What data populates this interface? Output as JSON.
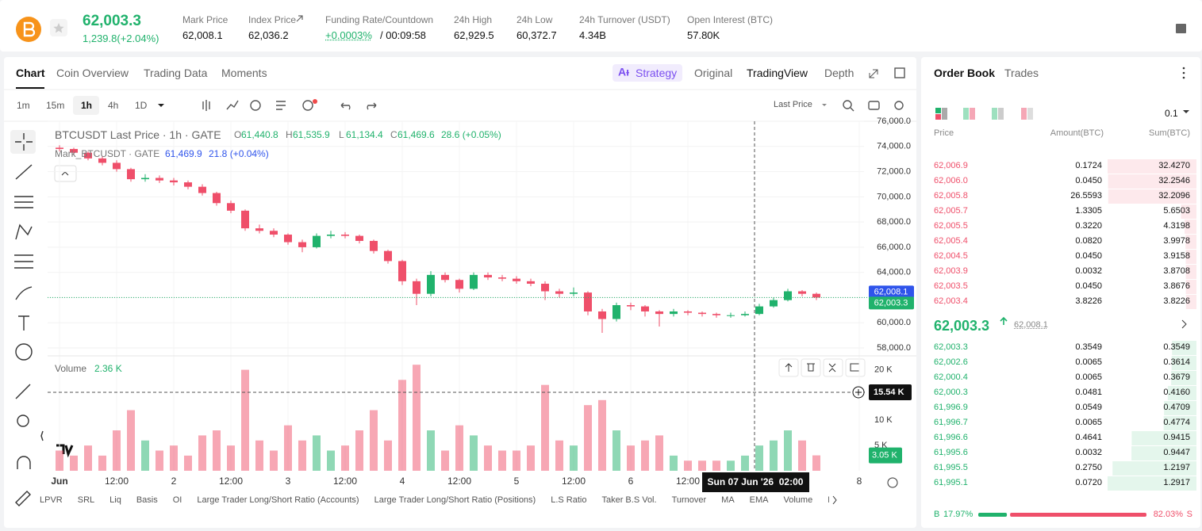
{
  "header": {
    "price": "62,003.3",
    "change": "1,239.8(+2.04%)",
    "stats": [
      {
        "label": "Mark Price",
        "value": "62,008.1"
      },
      {
        "label": "Index Price",
        "value": "62,036.2"
      },
      {
        "label": "Funding Rate/Countdown",
        "rate": "+0.0003%",
        "countdown": "/ 00:09:58"
      },
      {
        "label": "24h High",
        "value": "62,929.5"
      },
      {
        "label": "24h Low",
        "value": "60,372.7"
      },
      {
        "label": "24h Turnover (USDT)",
        "value": "4.34B"
      },
      {
        "label": "Open Interest (BTC)",
        "value": "57.80K"
      }
    ]
  },
  "tabs": [
    "Chart",
    "Coin Overview",
    "Trading Data",
    "Moments"
  ],
  "view_tabs": [
    "Strategy",
    "Original",
    "TradingView",
    "Depth"
  ],
  "intervals": [
    "1m",
    "15m",
    "1h",
    "4h",
    "1D"
  ],
  "price_type": "Last Price",
  "chart_data": {
    "type": "candlestick",
    "title": "BTCUSDT Last Price · 1h · GATE",
    "ohlc_legend": [
      {
        "key": "O",
        "value": "61,440.8"
      },
      {
        "key": "H",
        "value": "61,535.9"
      },
      {
        "key": "L",
        "value": "61,134.4"
      },
      {
        "key": "C",
        "value": "61,469.6"
      }
    ],
    "legend_change": "28.6 (+0.05%)",
    "mark_legend": {
      "name": "Mark_BTCUSDT · GATE",
      "value": "61,469.9",
      "change": "21.8 (+0.04%)"
    },
    "x": [
      0,
      3,
      6,
      9,
      12,
      15,
      18,
      21,
      24,
      27,
      30,
      33,
      36,
      39,
      42,
      45,
      48,
      51,
      54,
      57,
      60,
      63,
      66,
      69,
      72,
      75,
      78,
      81,
      84,
      87,
      90,
      93,
      96,
      99,
      102,
      105,
      108,
      111,
      114,
      117,
      120,
      123,
      126,
      129,
      132,
      135,
      138,
      141,
      144,
      147,
      150,
      153,
      156,
      159
    ],
    "ohlc": [
      [
        73900,
        74100,
        73600,
        73800
      ],
      [
        73800,
        73900,
        73300,
        73500
      ],
      [
        73500,
        73600,
        72900,
        73050
      ],
      [
        73050,
        73200,
        72500,
        72700
      ],
      [
        72700,
        72900,
        72000,
        72200
      ],
      [
        72200,
        72300,
        71200,
        71400
      ],
      [
        71400,
        71800,
        71200,
        71500
      ],
      [
        71500,
        71700,
        71100,
        71300
      ],
      [
        71300,
        71500,
        70900,
        71150
      ],
      [
        71150,
        71300,
        70600,
        70800
      ],
      [
        70800,
        71000,
        70100,
        70300
      ],
      [
        70300,
        70400,
        69300,
        69500
      ],
      [
        69500,
        69700,
        68700,
        68900
      ],
      [
        68900,
        69000,
        67300,
        67500
      ],
      [
        67500,
        67800,
        67100,
        67300
      ],
      [
        67300,
        67500,
        66800,
        67000
      ],
      [
        67000,
        67100,
        66200,
        66400
      ],
      [
        66400,
        66600,
        65600,
        66000
      ],
      [
        66000,
        67100,
        65900,
        66900
      ],
      [
        66900,
        67300,
        66700,
        67000
      ],
      [
        67000,
        67200,
        66700,
        66900
      ],
      [
        66900,
        67000,
        66300,
        66500
      ],
      [
        66500,
        66600,
        65500,
        65700
      ],
      [
        65700,
        65800,
        64700,
        64900
      ],
      [
        64900,
        65000,
        63000,
        63300
      ],
      [
        63300,
        63500,
        61400,
        62300
      ],
      [
        62300,
        64100,
        62100,
        63800
      ],
      [
        63800,
        64000,
        63200,
        63400
      ],
      [
        63400,
        63500,
        62400,
        62700
      ],
      [
        62700,
        64000,
        62600,
        63800
      ],
      [
        63800,
        64000,
        63400,
        63600
      ],
      [
        63600,
        63800,
        63300,
        63500
      ],
      [
        63500,
        63700,
        63100,
        63300
      ],
      [
        63300,
        63500,
        62900,
        63100
      ],
      [
        63100,
        63300,
        61800,
        62500
      ],
      [
        62500,
        62700,
        62000,
        62300
      ],
      [
        62300,
        62800,
        62100,
        62400
      ],
      [
        62400,
        62500,
        60600,
        60900
      ],
      [
        60900,
        61100,
        59200,
        60300
      ],
      [
        60300,
        61600,
        60100,
        61400
      ],
      [
        61400,
        61600,
        61000,
        61300
      ],
      [
        61300,
        61400,
        60500,
        60900
      ],
      [
        60900,
        61000,
        59700,
        60700
      ],
      [
        60700,
        61100,
        60500,
        60900
      ],
      [
        60900,
        61000,
        60600,
        60800
      ],
      [
        60800,
        60900,
        60500,
        60700
      ],
      [
        60700,
        60800,
        60400,
        60600
      ],
      [
        60600,
        60800,
        60400,
        60600
      ],
      [
        60600,
        60900,
        60500,
        60700
      ],
      [
        60700,
        61500,
        60600,
        61300
      ],
      [
        61300,
        62000,
        61200,
        61800
      ],
      [
        61800,
        62700,
        61700,
        62500
      ],
      [
        62500,
        62600,
        62100,
        62300
      ],
      [
        62300,
        62400,
        61800,
        62003.3
      ]
    ],
    "up_color": "#20b26c",
    "down_color": "#ef4f6a",
    "xlim": [
      -2.5,
      169
    ],
    "xticks": [
      {
        "value": 0,
        "label": "Jun"
      },
      {
        "value": 12,
        "label": "12:00"
      },
      {
        "value": 24,
        "label": "2"
      },
      {
        "value": 36,
        "label": "12:00"
      },
      {
        "value": 48,
        "label": "3"
      },
      {
        "value": 60,
        "label": "12:00"
      },
      {
        "value": 72,
        "label": "4"
      },
      {
        "value": 84,
        "label": "12:00"
      },
      {
        "value": 96,
        "label": "5"
      },
      {
        "value": 108,
        "label": "12:00"
      },
      {
        "value": 120,
        "label": "6"
      },
      {
        "value": 132,
        "label": "12:00"
      },
      {
        "value": 168,
        "label": "8"
      }
    ],
    "ylim": [
      57500,
      76000
    ],
    "yticks": [
      {
        "value": 58000,
        "label": "58,000.0"
      },
      {
        "value": 60000,
        "label": "60,000.0"
      },
      {
        "value": 62000,
        "label": "62,000.0"
      },
      {
        "value": 64000,
        "label": "64,000.0"
      },
      {
        "value": 66000,
        "label": "66,000.0"
      },
      {
        "value": 68000,
        "label": "68,000.0"
      },
      {
        "value": 70000,
        "label": "70,000.0"
      },
      {
        "value": 72000,
        "label": "72,000.0"
      },
      {
        "value": 74000,
        "label": "74,000.0"
      },
      {
        "value": 76000,
        "label": "76,000.0"
      }
    ],
    "grid": true,
    "price_tags": [
      {
        "value": 62008.1,
        "label": "62,008.1",
        "color": "#2f54eb"
      },
      {
        "value": 62003.3,
        "label": "62,003.3",
        "color": "#20b26c"
      }
    ],
    "volume": {
      "title": "Volume",
      "current": "2.36 K",
      "values": [
        4,
        3,
        5,
        3,
        8,
        12,
        6,
        4,
        5,
        3,
        7,
        8,
        5,
        20,
        6,
        4,
        9,
        6,
        7,
        4,
        5,
        8,
        12,
        6,
        18,
        21,
        8,
        4,
        9,
        7,
        5,
        4,
        4,
        5,
        17,
        6,
        5,
        13,
        14,
        8,
        5,
        6,
        7,
        3,
        2,
        2,
        2,
        2,
        3,
        5,
        6,
        8,
        6,
        3.05
      ],
      "ylim": [
        0,
        22.6
      ],
      "yticks": [
        {
          "value": 5,
          "label": "5 K"
        },
        {
          "value": 10,
          "label": "10 K"
        },
        {
          "value": 20,
          "label": "20 K"
        }
      ],
      "crosshair": {
        "value": 15.54,
        "label": "15.54 K"
      },
      "last": {
        "value": 3.05,
        "label": "3.05 K"
      }
    },
    "crosshair": {
      "x": 146,
      "label": "Sun 07 Jun '26  02:00"
    }
  },
  "indicators": [
    "LPVR",
    "SRL",
    "Liq",
    "Basis",
    "OI",
    "Large Trader Long/Short Ratio (Accounts)",
    "Large Trader Long/Short Ratio (Positions)",
    "L.S Ratio",
    "Taker B.S Vol.",
    "Turnover",
    "MA",
    "EMA",
    "Volume",
    "MACD"
  ],
  "orderbook": {
    "tabs": [
      "Order Book",
      "Trades"
    ],
    "precision": "0.1",
    "columns": [
      "Price",
      "Amount(BTC)",
      "Sum(BTC)"
    ],
    "asks": [
      {
        "price": "62,006.9",
        "amount": "0.1724",
        "sum": {
          "value": 32.427,
          "label": "32.4270"
        }
      },
      {
        "price": "62,006.0",
        "amount": "0.0450",
        "sum": {
          "value": 32.2546,
          "label": "32.2546"
        }
      },
      {
        "price": "62,005.8",
        "amount": "26.5593",
        "sum": {
          "value": 32.2096,
          "label": "32.2096"
        }
      },
      {
        "price": "62,005.7",
        "amount": "1.3305",
        "sum": {
          "value": 5.6503,
          "label": "5.6503"
        }
      },
      {
        "price": "62,005.5",
        "amount": "0.3220",
        "sum": {
          "value": 4.3198,
          "label": "4.3198"
        }
      },
      {
        "price": "62,005.4",
        "amount": "0.0820",
        "sum": {
          "value": 3.9978,
          "label": "3.9978"
        }
      },
      {
        "price": "62,004.5",
        "amount": "0.0450",
        "sum": {
          "value": 3.9158,
          "label": "3.9158"
        }
      },
      {
        "price": "62,003.9",
        "amount": "0.0032",
        "sum": {
          "value": 3.8708,
          "label": "3.8708"
        }
      },
      {
        "price": "62,003.5",
        "amount": "0.0450",
        "sum": {
          "value": 3.8676,
          "label": "3.8676"
        }
      },
      {
        "price": "62,003.4",
        "amount": "3.8226",
        "sum": {
          "value": 3.8226,
          "label": "3.8226"
        }
      }
    ],
    "mid": {
      "price": "62,003.3",
      "mark": "62,008.1"
    },
    "bids": [
      {
        "price": "62,003.3",
        "amount": "0.3549",
        "sum": {
          "value": 0.3549,
          "label": "0.3549"
        }
      },
      {
        "price": "62,002.6",
        "amount": "0.0065",
        "sum": {
          "value": 0.3614,
          "label": "0.3614"
        }
      },
      {
        "price": "62,000.4",
        "amount": "0.0065",
        "sum": {
          "value": 0.3679,
          "label": "0.3679"
        }
      },
      {
        "price": "62,000.3",
        "amount": "0.0481",
        "sum": {
          "value": 0.416,
          "label": "0.4160"
        }
      },
      {
        "price": "61,996.9",
        "amount": "0.0549",
        "sum": {
          "value": 0.4709,
          "label": "0.4709"
        }
      },
      {
        "price": "61,996.7",
        "amount": "0.0065",
        "sum": {
          "value": 0.4774,
          "label": "0.4774"
        }
      },
      {
        "price": "61,996.6",
        "amount": "0.4641",
        "sum": {
          "value": 0.9415,
          "label": "0.9415"
        }
      },
      {
        "price": "61,995.6",
        "amount": "0.0032",
        "sum": {
          "value": 0.9447,
          "label": "0.9447"
        }
      },
      {
        "price": "61,995.5",
        "amount": "0.2750",
        "sum": {
          "value": 1.2197,
          "label": "1.2197"
        }
      },
      {
        "price": "61,995.1",
        "amount": "0.0720",
        "sum": {
          "value": 1.2917,
          "label": "1.2917"
        }
      }
    ],
    "ratio": {
      "buy_key": "B",
      "buy": {
        "value": 17.97,
        "label": "17.97%"
      },
      "sell": {
        "value": 82.03,
        "label": "82.03%"
      },
      "sell_key": "S"
    }
  }
}
